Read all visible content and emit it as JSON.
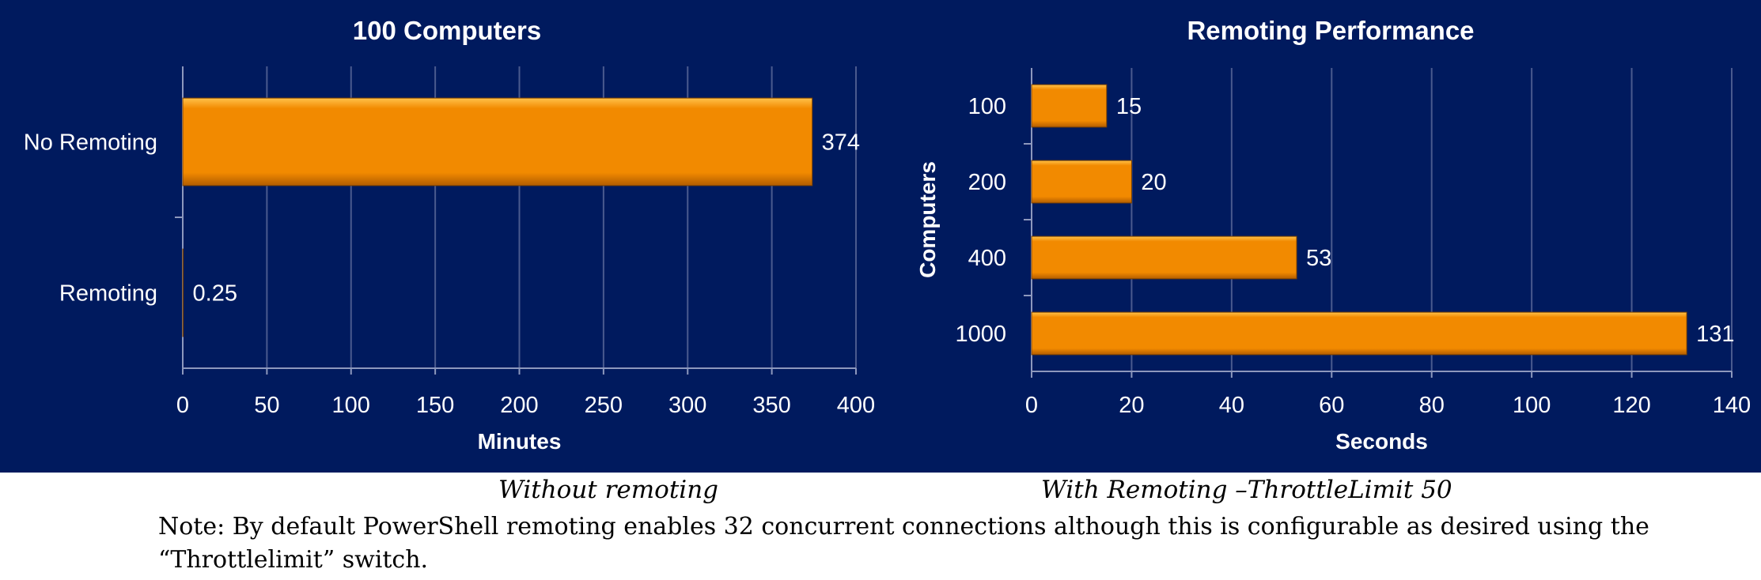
{
  "chart_data": [
    {
      "type": "bar",
      "orientation": "horizontal",
      "title": "100 Computers",
      "xlabel": "Minutes",
      "ylabel": "",
      "categories": [
        "No Remoting",
        "Remoting"
      ],
      "values": [
        374,
        0.25
      ],
      "value_labels": [
        "374",
        "0.25"
      ],
      "xlim": [
        0,
        400
      ],
      "xticks": [
        "0",
        "50",
        "100",
        "150",
        "200",
        "250",
        "300",
        "350",
        "400"
      ],
      "grid": "vertical",
      "legend": "none",
      "bar_color": "#f28a00",
      "background": "#001a5e"
    },
    {
      "type": "bar",
      "orientation": "horizontal",
      "title": "Remoting Performance",
      "xlabel": "Seconds",
      "ylabel": "Computers",
      "categories": [
        "100",
        "200",
        "400",
        "1000"
      ],
      "values": [
        15,
        20,
        53,
        131
      ],
      "value_labels": [
        "15",
        "20",
        "53",
        "131"
      ],
      "xlim": [
        0,
        140
      ],
      "xticks": [
        "0",
        "20",
        "40",
        "60",
        "80",
        "100",
        "120",
        "140"
      ],
      "grid": "vertical",
      "legend": "none",
      "bar_color": "#f28a00",
      "background": "#001a5e"
    }
  ],
  "captions": {
    "left": "Without remoting",
    "right": "With Remoting  –ThrottleLimit 50"
  },
  "note": "Note: By default PowerShell remoting enables 32 concurrent connections although this is configurable as desired using the “Throttlelimit” switch."
}
